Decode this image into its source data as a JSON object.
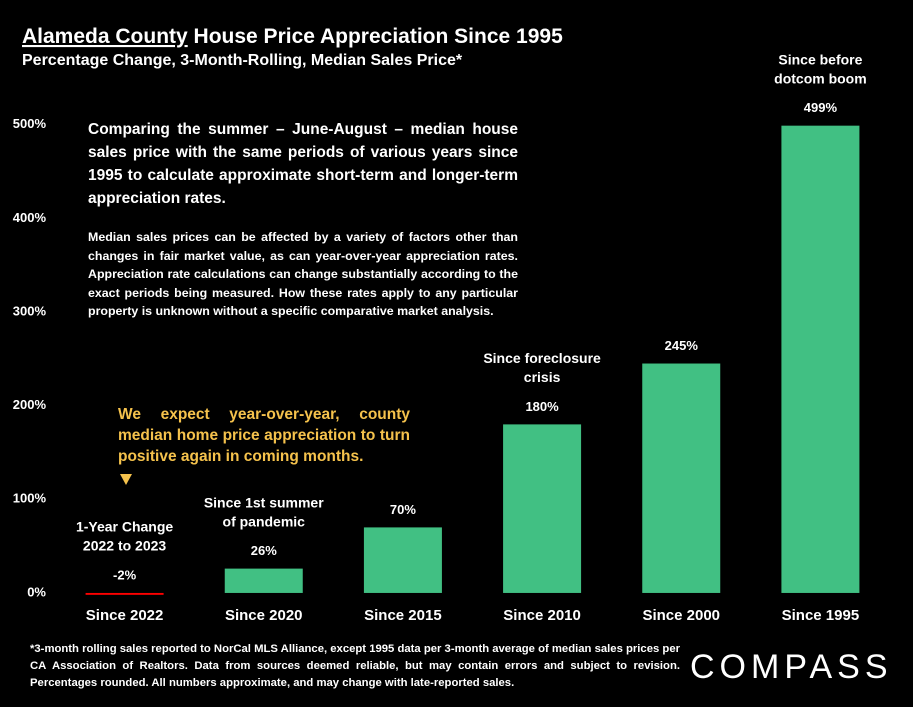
{
  "chart_data": {
    "type": "bar",
    "title_underlined": "Alameda County",
    "title": "House Price Appreciation Since 1995",
    "subtitle": "Percentage Change, 3-Month-Rolling, Median Sales Price*",
    "categories": [
      "Since 2022",
      "Since 2020",
      "Since 2015",
      "Since 2010",
      "Since 2000",
      "Since 1995"
    ],
    "values": [
      -2,
      26,
      70,
      180,
      245,
      499
    ],
    "value_labels": [
      "-2%",
      "26%",
      "70%",
      "180%",
      "245%",
      "499%"
    ],
    "colors": [
      "#ff0000",
      "#41c083",
      "#41c083",
      "#41c083",
      "#41c083",
      "#41c083"
    ],
    "bar_notes": [
      [
        "1-Year Change",
        "2022 to 2023"
      ],
      [
        "Since 1st summer",
        "of pandemic"
      ],
      null,
      [
        "Since foreclosure",
        "crisis"
      ],
      null,
      [
        "Since before",
        "dotcom boom"
      ]
    ],
    "ylim": [
      -15,
      520
    ],
    "yticks": [
      {
        "value": 0,
        "label": "0%"
      },
      {
        "value": 100,
        "label": "100%"
      },
      {
        "value": 200,
        "label": "200%"
      },
      {
        "value": 300,
        "label": "300%"
      },
      {
        "value": 400,
        "label": "400%"
      },
      {
        "value": 500,
        "label": "500%"
      }
    ],
    "grid": false,
    "annotations": [
      "Comparing the summer – June-August – median house sales price with the same periods of various years since 1995 to calculate approximate short-term and longer-term appreciation rates.",
      "Median sales prices can be affected by a variety of factors other than changes in fair market value, as can year-over-year appreciation rates. Appreciation rate calculations can change substantially according to the exact periods being measured. How these rates apply to any particular property is unknown without a specific comparative market analysis.",
      "We expect year-over-year, county median home price appreciation to turn positive again in coming months."
    ],
    "footnote": "*3-month rolling sales reported to NorCal MLS Alliance, except 1995 data per 3-month average of median sales prices per CA Association of Realtors. Data from sources deemed reliable, but may contain errors and subject to revision. Percentages rounded. All numbers approximate, and may change with late-reported sales.",
    "logo": "COMPASS"
  }
}
